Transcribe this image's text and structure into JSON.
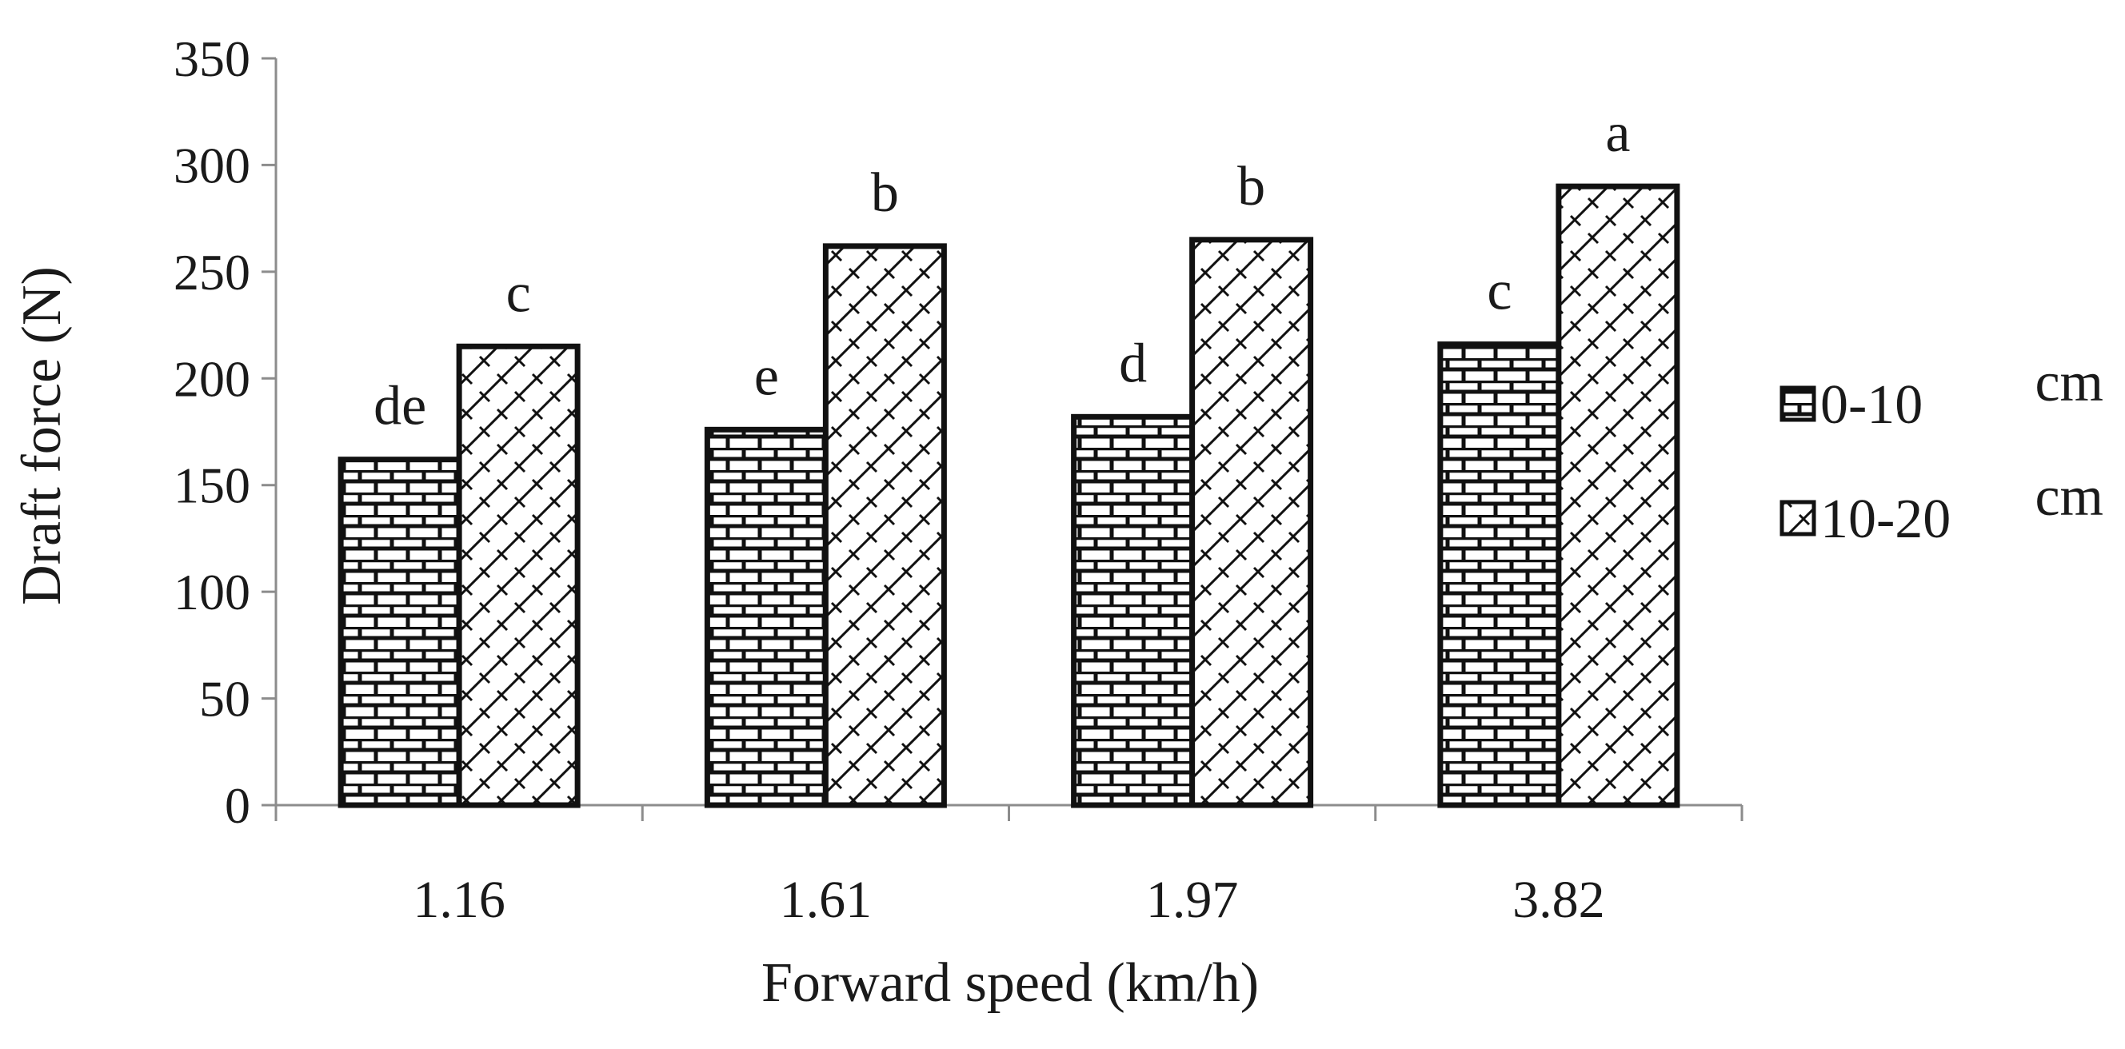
{
  "chart_data": {
    "type": "bar",
    "title": "",
    "xlabel": "Forward speed (km/h)",
    "ylabel": "Draft force (N)",
    "ylim": [
      0,
      350
    ],
    "yticks": [
      0,
      50,
      100,
      150,
      200,
      250,
      300,
      350
    ],
    "categories": [
      "1.16",
      "1.61",
      "1.97",
      "3.82"
    ],
    "series": [
      {
        "name": "0-10",
        "unit": "cm",
        "values": [
          162,
          176,
          182,
          216
        ],
        "significance": [
          "de",
          "e",
          "d",
          "c"
        ],
        "pattern": "brick"
      },
      {
        "name": "10-20",
        "unit": "cm",
        "values": [
          215,
          262,
          265,
          290
        ],
        "significance": [
          "c",
          "b",
          "b",
          "a"
        ],
        "pattern": "diagonal-crosshatch"
      }
    ],
    "legend_position": "right",
    "grid": false
  }
}
